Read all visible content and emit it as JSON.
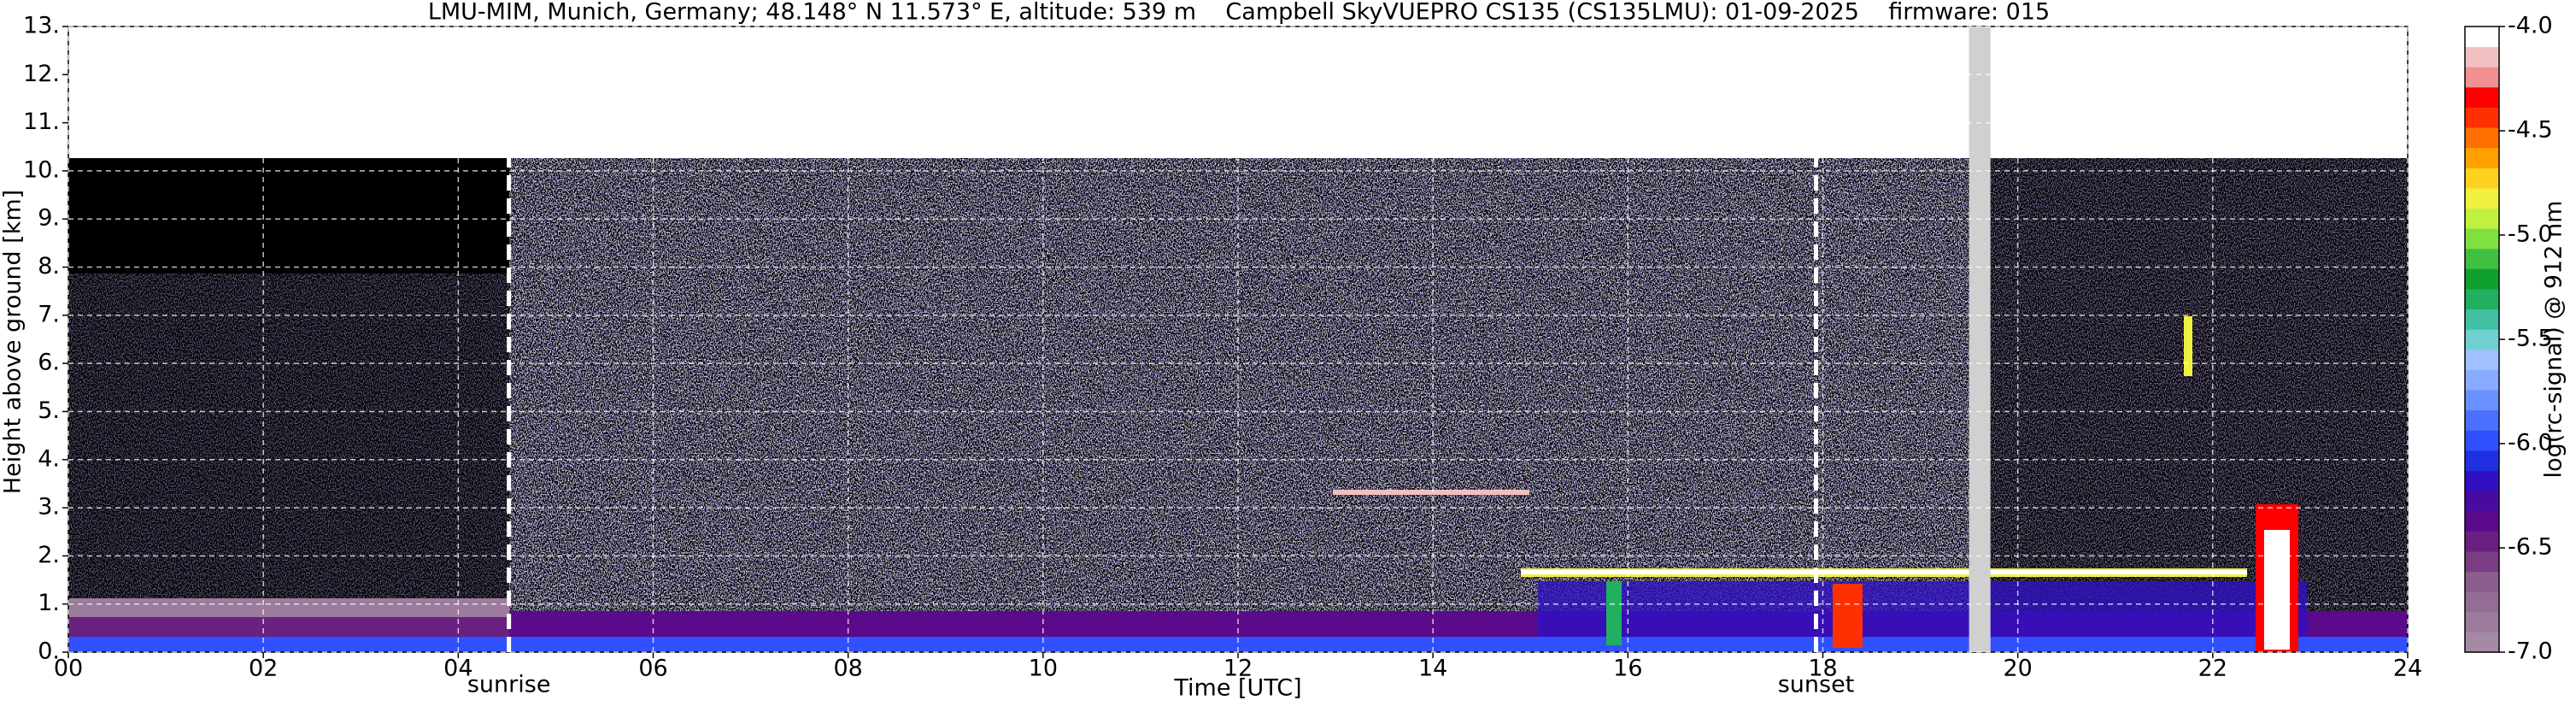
{
  "chart_data": {
    "type": "heatmap",
    "title": "LMU-MIM, Munich, Germany; 48.148° N 11.573° E, altitude: 539 m    Campbell SkyVUEPRO CS135 (CS135LMU): 01-09-2025    firmware: 015",
    "x_label": "Time [UTC]",
    "y_label": "Height above ground [km]",
    "xlim": [
      0,
      24
    ],
    "xticks": [
      {
        "value": 0,
        "label": "00"
      },
      {
        "value": 2,
        "label": "02"
      },
      {
        "value": 4,
        "label": "04"
      },
      {
        "value": 6,
        "label": "06"
      },
      {
        "value": 8,
        "label": "08"
      },
      10,
      12,
      14,
      16,
      18,
      20,
      22,
      24
    ],
    "ylim": [
      0,
      13
    ],
    "yticks": [
      {
        "value": 0,
        "label": "0."
      },
      {
        "value": 1,
        "label": "1."
      },
      {
        "value": 2,
        "label": "2."
      },
      {
        "value": 3,
        "label": "3."
      },
      {
        "value": 4,
        "label": "4."
      },
      {
        "value": 5,
        "label": "5."
      },
      {
        "value": 6,
        "label": "6."
      },
      {
        "value": 7,
        "label": "7."
      },
      {
        "value": 8,
        "label": "8."
      },
      {
        "value": 9,
        "label": "9."
      },
      {
        "value": 10,
        "label": "10."
      },
      {
        "value": 11,
        "label": "11."
      },
      {
        "value": 12,
        "label": "12."
      },
      {
        "value": 13,
        "label": "13."
      }
    ],
    "grid": true,
    "sunrise": {
      "time": 4.52,
      "label": "sunrise"
    },
    "sunset": {
      "time": 17.93,
      "label": "sunset"
    },
    "data_gap": [
      19.5,
      19.72
    ],
    "colorbar": {
      "label": "log(rc-signal) @ 912 nm",
      "lim": [
        -7,
        -4
      ],
      "ticks": [
        {
          "value": -7,
          "label": "-7.0"
        },
        -6.5,
        {
          "value": -6,
          "label": "-6.0"
        },
        -5.5,
        {
          "value": -5,
          "label": "-5.0"
        },
        -4.5,
        {
          "value": -4,
          "label": "-4.0"
        }
      ],
      "colors": [
        "#a58aa5",
        "#9c7b9c",
        "#946c94",
        "#8c5c8c",
        "#7a3d84",
        "#6a2080",
        "#5a0a8a",
        "#4a0aa0",
        "#3010c0",
        "#2030e0",
        "#3050ff",
        "#4a70ff",
        "#6a90ff",
        "#88aaff",
        "#a0c0ff",
        "#70d0d0",
        "#40c0a0",
        "#20b060",
        "#10a030",
        "#40c040",
        "#80e040",
        "#c0f040",
        "#f0f040",
        "#ffd020",
        "#ffa000",
        "#ff7000",
        "#ff3000",
        "#ff0000",
        "#f09090",
        "#f0c0c0",
        "#ffffff"
      ]
    }
  }
}
